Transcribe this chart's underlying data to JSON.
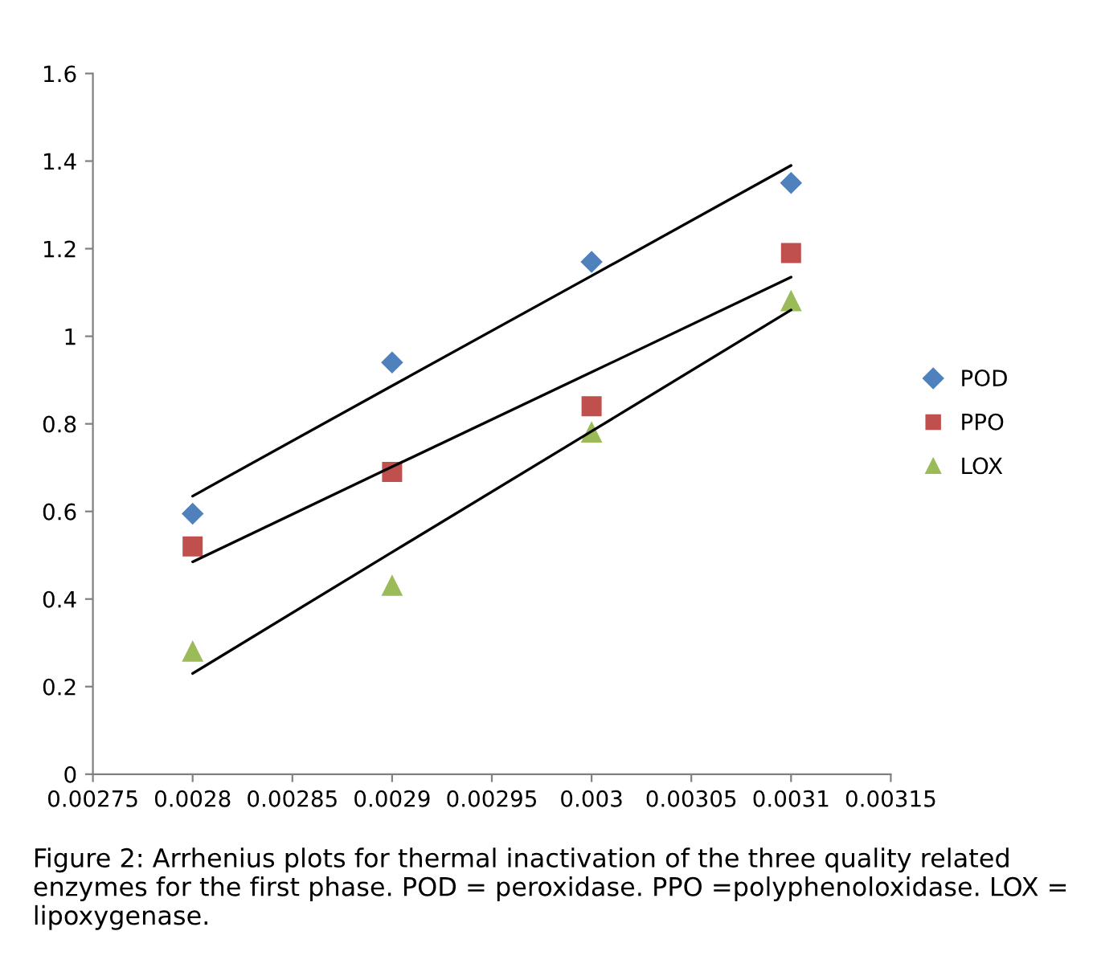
{
  "chart_data": {
    "type": "scatter",
    "x": [
      0.0028,
      0.0029,
      0.003,
      0.0031
    ],
    "series": [
      {
        "name": "POD",
        "color": "#4f81bd",
        "marker": "diamond",
        "values": [
          0.595,
          0.94,
          1.17,
          1.35
        ]
      },
      {
        "name": "PPO",
        "color": "#c0504d",
        "marker": "square",
        "values": [
          0.52,
          0.69,
          0.84,
          1.19
        ]
      },
      {
        "name": "LOX",
        "color": "#9bbb59",
        "marker": "triangle",
        "values": [
          0.28,
          0.43,
          0.78,
          1.08
        ]
      },
      {
        "type": "line",
        "color": "#000000",
        "marker": "none",
        "values": [
          0.635,
          0.887,
          1.138,
          1.39
        ]
      },
      {
        "type": "line",
        "color": "#000000",
        "marker": "none",
        "values": [
          0.485,
          0.702,
          0.918,
          1.135
        ]
      },
      {
        "type": "line",
        "color": "#000000",
        "marker": "none",
        "values": [
          0.23,
          0.507,
          0.783,
          1.06
        ]
      }
    ],
    "xlim": [
      0.00275,
      0.00315
    ],
    "xticks": [
      0.00275,
      0.0028,
      0.00285,
      0.0029,
      0.00295,
      0.003,
      0.00305,
      0.0031,
      0.00315
    ],
    "ylim": [
      0,
      1.6
    ],
    "yticks": [
      0,
      0.2,
      0.4,
      0.6,
      0.8,
      1,
      1.2,
      1.4,
      1.6
    ],
    "grid": false,
    "legend": "right",
    "annotations": [
      "Figure 2: Arrhenius plots for thermal inactivation of the three quality related enzymes for the first phase. POD = peroxidase. PPO =polyphenoloxidase. LOX = lipoxygenase."
    ]
  }
}
